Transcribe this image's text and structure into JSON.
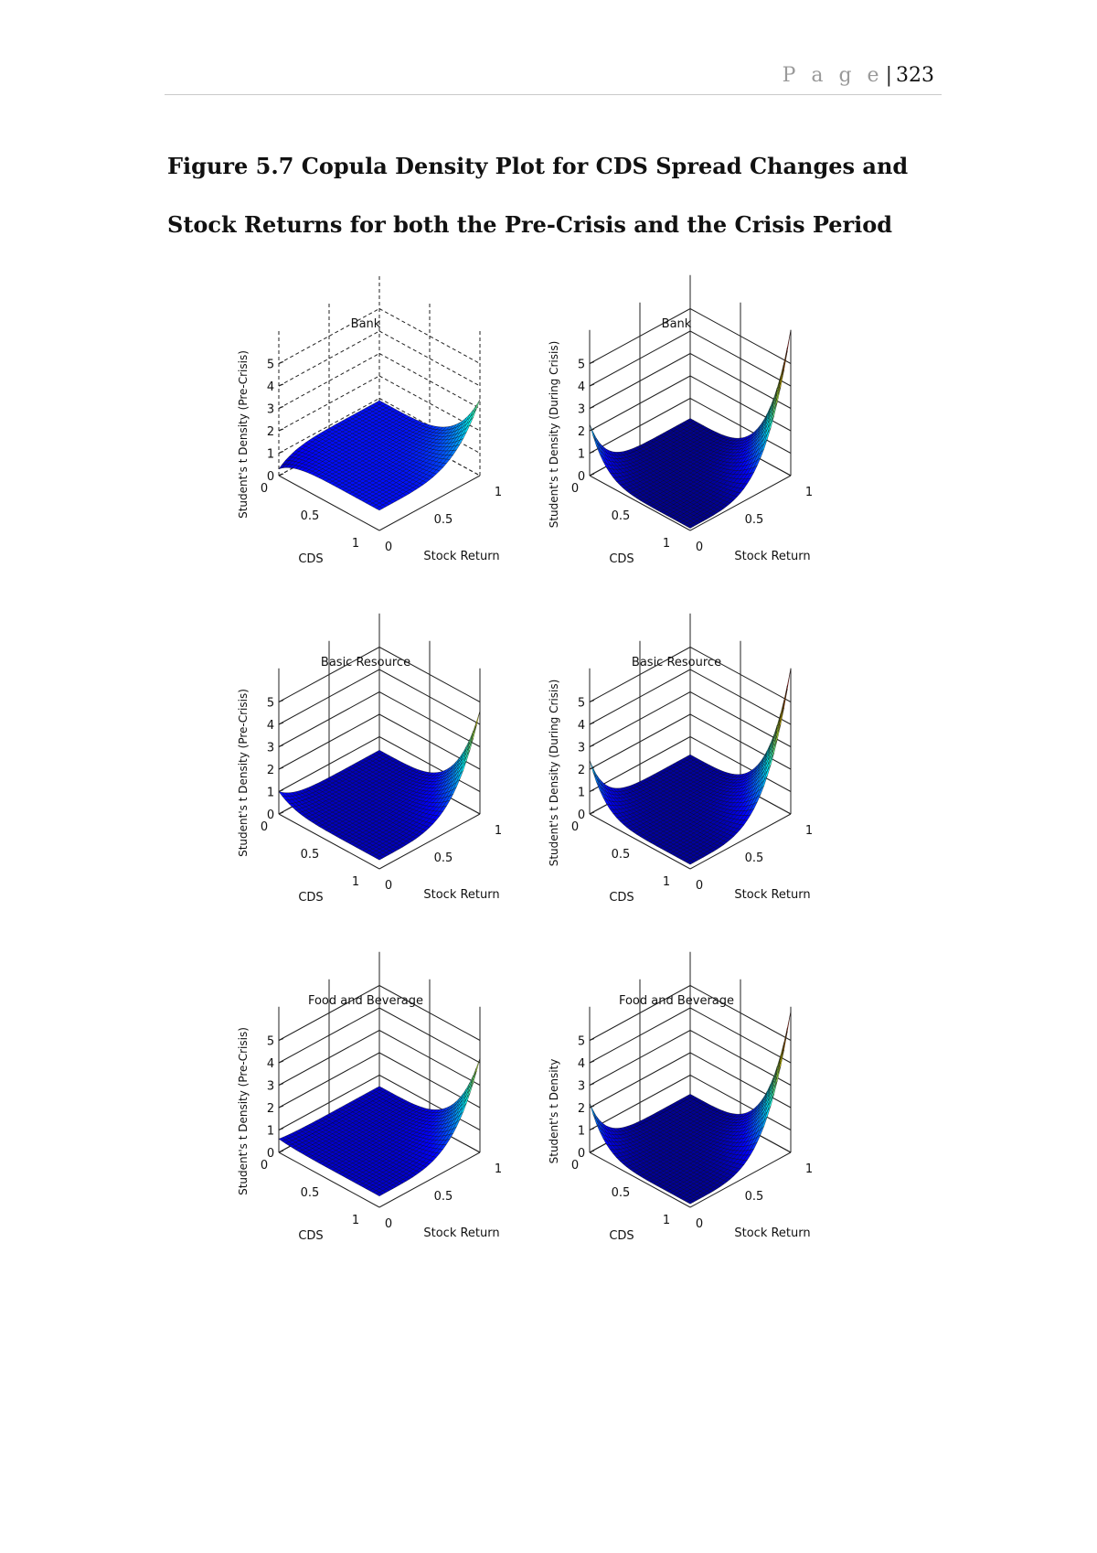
{
  "header": {
    "page_label": "P a g e",
    "separator": "|",
    "page_number": "323"
  },
  "caption": "Figure 5.7 Copula Density Plot for CDS Spread Changes and Stock Returns for both the Pre-Crisis and the Crisis Period",
  "chart_data": [
    {
      "type": "surface",
      "title": "Bank",
      "xlabel": "CDS",
      "ylabel": "Stock Return",
      "zlabel": "Student's t Density (Pre-Crisis)",
      "xlim": [
        0,
        1
      ],
      "ylim": [
        0,
        1
      ],
      "zlim": [
        0,
        5
      ],
      "xticks": [
        "0",
        "0.5",
        "1"
      ],
      "yticks": [
        "0",
        "0.5",
        "1"
      ],
      "zticks": [
        "0",
        "1",
        "2",
        "3",
        "4",
        "5"
      ],
      "grid": "dashed",
      "colormap": "jet",
      "corner_peak_11": 3.4,
      "corner_peak_00": 0.3,
      "edge_level": 0.9
    },
    {
      "type": "surface",
      "title": "Bank",
      "xlabel": "CDS",
      "ylabel": "Stock Return",
      "zlabel": "Student's t Density (During Crisis)",
      "xlim": [
        0,
        1
      ],
      "ylim": [
        0,
        1
      ],
      "zlim": [
        0,
        5
      ],
      "xticks": [
        "0",
        "0.5",
        "1"
      ],
      "yticks": [
        "0",
        "0.5",
        "1"
      ],
      "zticks": [
        "0",
        "1",
        "2",
        "3",
        "4",
        "5"
      ],
      "grid": "solid",
      "colormap": "jet",
      "corner_peak_11": 6.5,
      "corner_peak_00": 2.3,
      "edge_level": 0.1
    },
    {
      "type": "surface",
      "title": "Basic Resource",
      "xlabel": "CDS",
      "ylabel": "Stock Return",
      "zlabel": "Student's t Density (Pre-Crisis)",
      "xlim": [
        0,
        1
      ],
      "ylim": [
        0,
        1
      ],
      "zlim": [
        0,
        5
      ],
      "xticks": [
        "0",
        "0.5",
        "1"
      ],
      "yticks": [
        "0",
        "0.5",
        "1"
      ],
      "zticks": [
        "0",
        "1",
        "2",
        "3",
        "4",
        "5"
      ],
      "grid": "solid",
      "colormap": "jet",
      "corner_peak_11": 4.6,
      "corner_peak_00": 1.0,
      "edge_level": 0.4
    },
    {
      "type": "surface",
      "title": "Basic Resource",
      "xlabel": "CDS",
      "ylabel": "Stock Return",
      "zlabel": "Student's t Density (During Crisis)",
      "xlim": [
        0,
        1
      ],
      "ylim": [
        0,
        1
      ],
      "zlim": [
        0,
        5
      ],
      "xticks": [
        "0",
        "0.5",
        "1"
      ],
      "yticks": [
        "0",
        "0.5",
        "1"
      ],
      "zticks": [
        "0",
        "1",
        "2",
        "3",
        "4",
        "5"
      ],
      "grid": "solid",
      "colormap": "jet",
      "corner_peak_11": 6.5,
      "corner_peak_00": 2.4,
      "edge_level": 0.2
    },
    {
      "type": "surface",
      "title": "Food and Beverage",
      "xlabel": "CDS",
      "ylabel": "Stock Return",
      "zlabel": "Student's t Density (Pre-Crisis)",
      "xlim": [
        0,
        1
      ],
      "ylim": [
        0,
        1
      ],
      "zlim": [
        0,
        5
      ],
      "xticks": [
        "0",
        "0.5",
        "1"
      ],
      "yticks": [
        "0",
        "0.5",
        "1"
      ],
      "zticks": [
        "0",
        "1",
        "2",
        "3",
        "4",
        "5"
      ],
      "grid": "solid",
      "colormap": "jet",
      "corner_peak_11": 4.2,
      "corner_peak_00": 0.6,
      "edge_level": 0.5
    },
    {
      "type": "surface",
      "title": "Food and Beverage",
      "xlabel": "CDS",
      "ylabel": "Stock Return",
      "zlabel": "Student's t Density",
      "xlim": [
        0,
        1
      ],
      "ylim": [
        0,
        1
      ],
      "zlim": [
        0,
        5
      ],
      "xticks": [
        "0",
        "0.5",
        "1"
      ],
      "yticks": [
        "0",
        "0.5",
        "1"
      ],
      "zticks": [
        "0",
        "1",
        "2",
        "3",
        "4",
        "5"
      ],
      "grid": "solid",
      "colormap": "jet",
      "corner_peak_11": 6.3,
      "corner_peak_00": 2.2,
      "edge_level": 0.15
    }
  ]
}
